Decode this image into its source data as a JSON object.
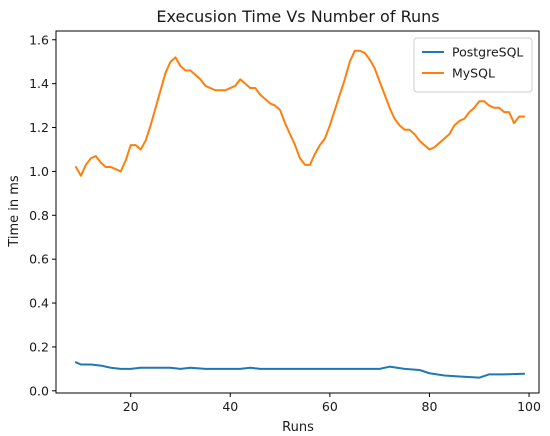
{
  "chart_data": {
    "type": "line",
    "title": "Execusion Time Vs Number of Runs",
    "xlabel": "Runs",
    "ylabel": "Time in ms",
    "xlim": [
      5,
      102
    ],
    "ylim": [
      -0.01,
      1.64
    ],
    "xticks": [
      20,
      40,
      60,
      80,
      100
    ],
    "yticks": [
      0.0,
      0.2,
      0.4,
      0.6,
      0.8,
      1.0,
      1.2,
      1.4,
      1.6
    ],
    "grid": false,
    "legend_position": "top-right",
    "series": [
      {
        "name": "PostgreSQL",
        "color": "#1f77b4",
        "x": [
          9,
          10,
          12,
          14,
          16,
          18,
          20,
          22,
          25,
          28,
          30,
          32,
          35,
          38,
          40,
          42,
          44,
          46,
          48,
          50,
          52,
          55,
          58,
          60,
          63,
          66,
          68,
          70,
          72,
          75,
          78,
          80,
          83,
          86,
          90,
          92,
          95,
          99
        ],
        "values": [
          0.13,
          0.12,
          0.12,
          0.115,
          0.105,
          0.1,
          0.1,
          0.105,
          0.105,
          0.105,
          0.1,
          0.105,
          0.1,
          0.1,
          0.1,
          0.1,
          0.105,
          0.1,
          0.1,
          0.1,
          0.1,
          0.1,
          0.1,
          0.1,
          0.1,
          0.1,
          0.1,
          0.1,
          0.11,
          0.1,
          0.095,
          0.08,
          0.07,
          0.065,
          0.06,
          0.075,
          0.075,
          0.078
        ]
      },
      {
        "name": "MySQL",
        "color": "#ff7f0e",
        "x": [
          9,
          10,
          11,
          12,
          13,
          14,
          15,
          16,
          17,
          18,
          19,
          20,
          21,
          22,
          23,
          24,
          25,
          26,
          27,
          28,
          29,
          30,
          31,
          32,
          33,
          34,
          35,
          36,
          37,
          38,
          39,
          40,
          41,
          42,
          43,
          44,
          45,
          46,
          47,
          48,
          49,
          50,
          51,
          52,
          53,
          54,
          55,
          56,
          57,
          58,
          59,
          60,
          61,
          62,
          63,
          64,
          65,
          66,
          67,
          68,
          69,
          70,
          71,
          72,
          73,
          74,
          75,
          76,
          77,
          78,
          79,
          80,
          81,
          82,
          83,
          84,
          85,
          86,
          87,
          88,
          89,
          90,
          91,
          92,
          93,
          94,
          95,
          96,
          97,
          98,
          99
        ],
        "values": [
          1.02,
          0.98,
          1.03,
          1.06,
          1.07,
          1.04,
          1.02,
          1.02,
          1.01,
          1.0,
          1.05,
          1.12,
          1.12,
          1.1,
          1.14,
          1.21,
          1.29,
          1.37,
          1.45,
          1.5,
          1.52,
          1.48,
          1.46,
          1.46,
          1.44,
          1.42,
          1.39,
          1.38,
          1.37,
          1.37,
          1.37,
          1.38,
          1.39,
          1.42,
          1.4,
          1.38,
          1.38,
          1.35,
          1.33,
          1.31,
          1.3,
          1.28,
          1.22,
          1.17,
          1.12,
          1.06,
          1.03,
          1.03,
          1.08,
          1.12,
          1.15,
          1.21,
          1.28,
          1.35,
          1.42,
          1.5,
          1.55,
          1.55,
          1.54,
          1.51,
          1.47,
          1.41,
          1.35,
          1.29,
          1.24,
          1.21,
          1.19,
          1.19,
          1.17,
          1.14,
          1.12,
          1.1,
          1.11,
          1.13,
          1.15,
          1.17,
          1.21,
          1.23,
          1.24,
          1.27,
          1.29,
          1.32,
          1.32,
          1.3,
          1.29,
          1.29,
          1.27,
          1.27,
          1.22,
          1.25,
          1.25
        ]
      }
    ]
  }
}
